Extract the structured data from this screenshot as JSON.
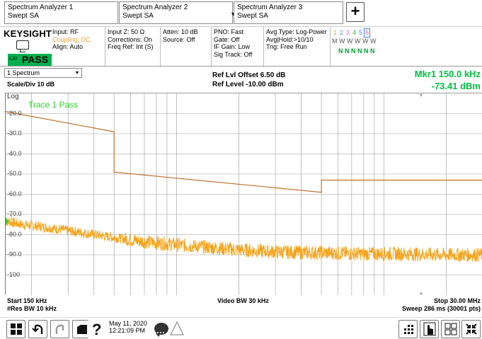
{
  "tabs": [
    {
      "title": "Spectrum Analyzer 1",
      "mode": "Swept SA"
    },
    {
      "title": "Spectrum Analyzer 2",
      "mode": "Swept SA"
    },
    {
      "title": "Spectrum Analyzer 3",
      "mode": "Swept SA"
    }
  ],
  "add_tab_label": "+",
  "settings": {
    "brand": "KEYSIGHT",
    "status": "PASS",
    "lxi": "LXI",
    "input": {
      "input": "Input: RF",
      "coupling": "Coupling: DC",
      "align": "Align: Auto"
    },
    "impedance": {
      "input_z": "Input Z: 50 Ω",
      "corrections": "Corrections: On",
      "freq_ref": "Freq Ref: Int (S)"
    },
    "atten": {
      "atten": "Atten: 10 dB",
      "source": "Source: Off"
    },
    "pno": {
      "pno": "PNO: Fast",
      "gate": "Gate: Off",
      "if_gain": "IF Gain: Low",
      "sig_track": "Sig Track: Off"
    },
    "avg": {
      "avg_type": "Avg Type: Log-Power",
      "avg_hold": "Avg|Hold:>10/10",
      "trig": "Trig: Free Run"
    },
    "traces": {
      "numbers": [
        "1",
        "2",
        "3",
        "4",
        "5",
        "6"
      ],
      "number_colors": [
        "#f0a030",
        "#40a0f0",
        "#e060e0",
        "#30c030",
        "#4080ff",
        "#f06060"
      ],
      "types": "M W W W W W",
      "detectors": "N N N N N N"
    }
  },
  "measurement": {
    "view": "1 Spectrum",
    "scale": "Scale/Div 10 dB",
    "scale_type": "Log",
    "ref_offset": "Ref Lvl Offset 6.50 dB",
    "ref_level": "Ref Level -10.00 dBm",
    "marker_label": "Mkr1  150.0 kHz",
    "marker_value": "-73.41 dBm",
    "trace_status": "Trace 1 Pass",
    "marker_number": "1"
  },
  "chart_data": {
    "type": "line",
    "xlim": [
      150,
      30000
    ],
    "x_unit": "kHz",
    "ylim": [
      -110,
      -10
    ],
    "y_ticks": [
      "-20.0",
      "-30.0",
      "-40.0",
      "-50.0",
      "-60.0",
      "-70.0",
      "-80.0",
      "-90.0",
      "-100"
    ],
    "limit_line": {
      "x": [
        150,
        500,
        500,
        5000,
        5000,
        30000
      ],
      "y": [
        -19,
        -29,
        -49,
        -59,
        -53,
        -53
      ]
    },
    "trace": {
      "x": [
        150,
        180,
        220,
        300,
        400,
        550,
        700,
        1000,
        1500,
        2000,
        3000,
        5000,
        8000,
        12000,
        20000,
        30000
      ],
      "y": [
        -73.4,
        -75,
        -76,
        -78,
        -80,
        -82,
        -83.5,
        -85,
        -86.5,
        -87.5,
        -88.5,
        -89,
        -89.5,
        -89.5,
        -90,
        -90
      ]
    },
    "marker": {
      "x": 150,
      "y": -73.41
    },
    "colors": {
      "trace": "#f5a31a",
      "limit": "#c07028",
      "grid": "#9a9a9a"
    }
  },
  "bottom": {
    "start": "Start 150 kHz",
    "res_bw": "#Res BW 10 kHz",
    "video_bw": "Video BW 30 kHz",
    "stop": "Stop 30.00 MHz",
    "sweep": "Sweep 286 ms (30001 pts)"
  },
  "taskbar": {
    "date": "May 11, 2020",
    "time": "12:21:09 PM"
  }
}
